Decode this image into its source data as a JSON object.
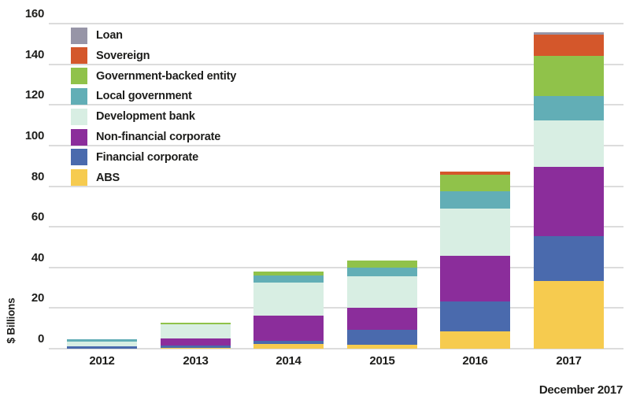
{
  "colors": {
    "grid": "#dcdcdc",
    "text": "#1d1d1b",
    "background": "#ffffff"
  },
  "footer": {
    "note": "December 2017"
  },
  "chart_data": {
    "type": "bar",
    "stacked": true,
    "title": "",
    "xlabel": "",
    "ylabel": "$ Billions",
    "ylim": [
      0,
      160
    ],
    "ytick_interval": 20,
    "yticks": [
      0,
      20,
      40,
      60,
      80,
      100,
      120,
      140,
      160
    ],
    "grid": "horizontal",
    "legend_position": "inside-top-left",
    "categories": [
      "2012",
      "2013",
      "2014",
      "2015",
      "2016",
      "2017"
    ],
    "series_note": "series listed in legend order (top to bottom); bars stack in reverse order (ABS at bottom, Loan on top)",
    "series": [
      {
        "name": "Loan",
        "color": "#9795a7",
        "values": [
          0,
          0,
          0,
          0,
          0,
          1.3
        ]
      },
      {
        "name": "Sovereign",
        "color": "#d4572b",
        "values": [
          0,
          0,
          0,
          0,
          1.3,
          10.5
        ]
      },
      {
        "name": "Government-backed entity",
        "color": "#90c24a",
        "values": [
          0,
          0.8,
          1.7,
          3.2,
          8.4,
          19.5
        ]
      },
      {
        "name": "Local government",
        "color": "#62aeb6",
        "values": [
          1.5,
          0,
          3.6,
          4.5,
          8.4,
          12
        ]
      },
      {
        "name": "Development bank",
        "color": "#d8eee3",
        "values": [
          2,
          7,
          16.4,
          15.5,
          23.2,
          23
        ]
      },
      {
        "name": "Non-financial corporate",
        "color": "#8b2d9b",
        "values": [
          0,
          3.5,
          12.2,
          10.7,
          22.6,
          34
        ]
      },
      {
        "name": "Financial corporate",
        "color": "#4a6aad",
        "values": [
          1.3,
          1,
          1.6,
          7.4,
          14.8,
          22
        ]
      },
      {
        "name": "ABS",
        "color": "#f6cb4f",
        "values": [
          0,
          0.5,
          2.3,
          1.9,
          8.4,
          33.5
        ]
      }
    ],
    "totals": [
      4.8,
      12.8,
      37.8,
      43.2,
      87.1,
      155.8
    ]
  }
}
